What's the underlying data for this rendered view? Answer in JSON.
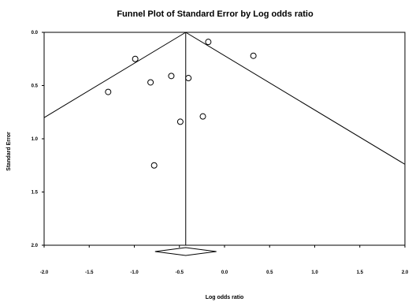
{
  "chart_data": {
    "type": "scatter",
    "title": "Funnel Plot of Standard Error by Log odds ratio",
    "xlabel": "Log odds ratio",
    "ylabel": "Standard Error",
    "xlim": [
      -2.0,
      2.0
    ],
    "ylim": [
      0.0,
      2.0
    ],
    "y_inverted": true,
    "x_ticks": [
      "-2.0",
      "-1.5",
      "-1.0",
      "-0.5",
      "0.0",
      "0.5",
      "1.0",
      "1.5",
      "2.0"
    ],
    "y_ticks": [
      "0.0",
      "0.5",
      "1.0",
      "1.5",
      "2.0"
    ],
    "grid": false,
    "points": [
      {
        "x": -1.29,
        "y": 0.56
      },
      {
        "x": -0.99,
        "y": 0.25
      },
      {
        "x": -0.82,
        "y": 0.47
      },
      {
        "x": -0.78,
        "y": 1.25
      },
      {
        "x": -0.59,
        "y": 0.41
      },
      {
        "x": -0.49,
        "y": 0.84
      },
      {
        "x": -0.4,
        "y": 0.43
      },
      {
        "x": -0.24,
        "y": 0.79
      },
      {
        "x": -0.18,
        "y": 0.09
      },
      {
        "x": 0.32,
        "y": 0.22
      }
    ],
    "summary_estimate": -0.43,
    "funnel_slope": 1.96,
    "summary_diamond": {
      "low": -0.77,
      "high": -0.09
    }
  }
}
